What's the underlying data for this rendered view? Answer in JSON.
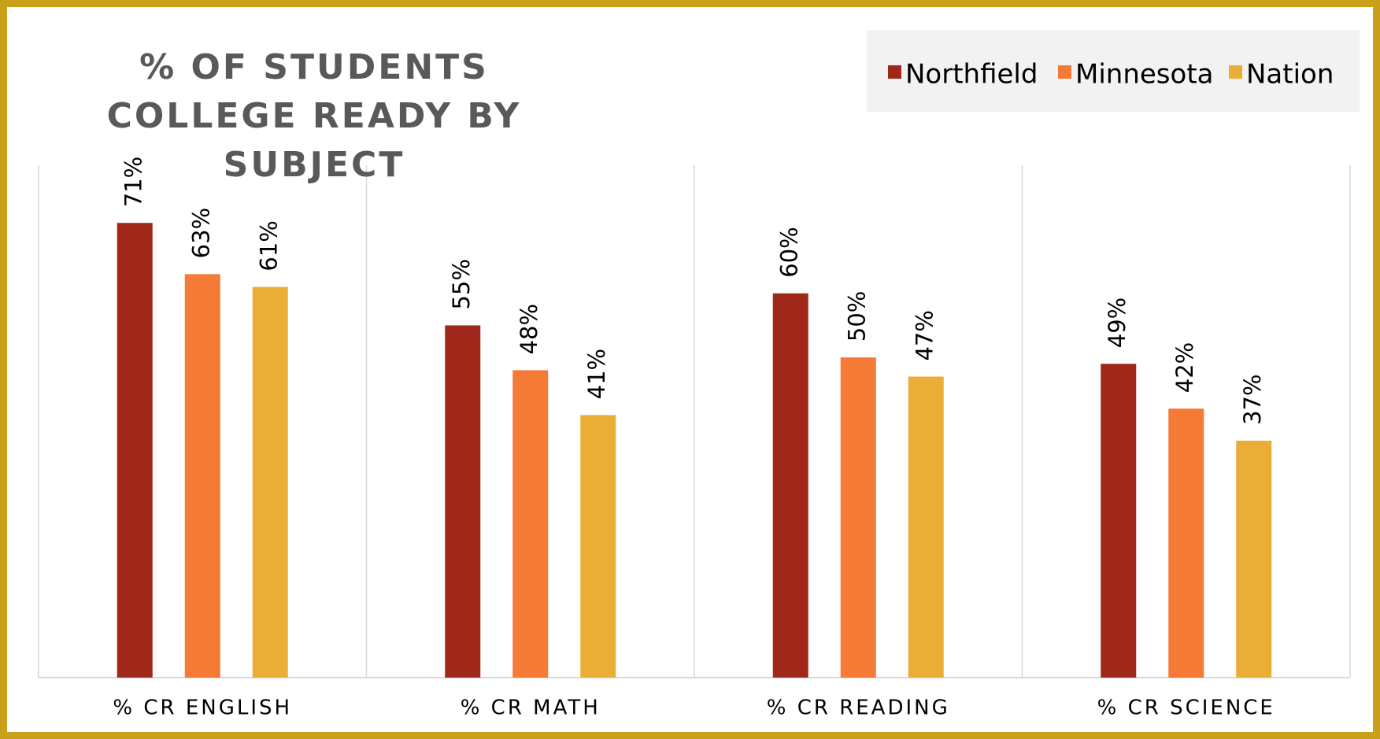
{
  "chart_data": {
    "type": "bar",
    "title": "% OF STUDENTS COLLEGE READY BY SUBJECT",
    "categories": [
      "% CR ENGLISH",
      "% CR MATH",
      "% CR READING",
      "% CR SCIENCE"
    ],
    "series": [
      {
        "name": "Northfield",
        "color": "#a0281a",
        "values": [
          71,
          55,
          60,
          49
        ],
        "value_labels": [
          "71%",
          "55%",
          "60%",
          "49%"
        ]
      },
      {
        "name": "Minnesota",
        "color": "#f47a35",
        "values": [
          63,
          48,
          50,
          42
        ],
        "value_labels": [
          "63%",
          "48%",
          "50%",
          "42%"
        ]
      },
      {
        "name": "Nation",
        "color": "#eaad36",
        "values": [
          61,
          41,
          47,
          37
        ],
        "value_labels": [
          "61%",
          "41%",
          "47%",
          "37%"
        ]
      }
    ],
    "ylim": [
      0,
      80
    ],
    "legend": "top-right"
  }
}
